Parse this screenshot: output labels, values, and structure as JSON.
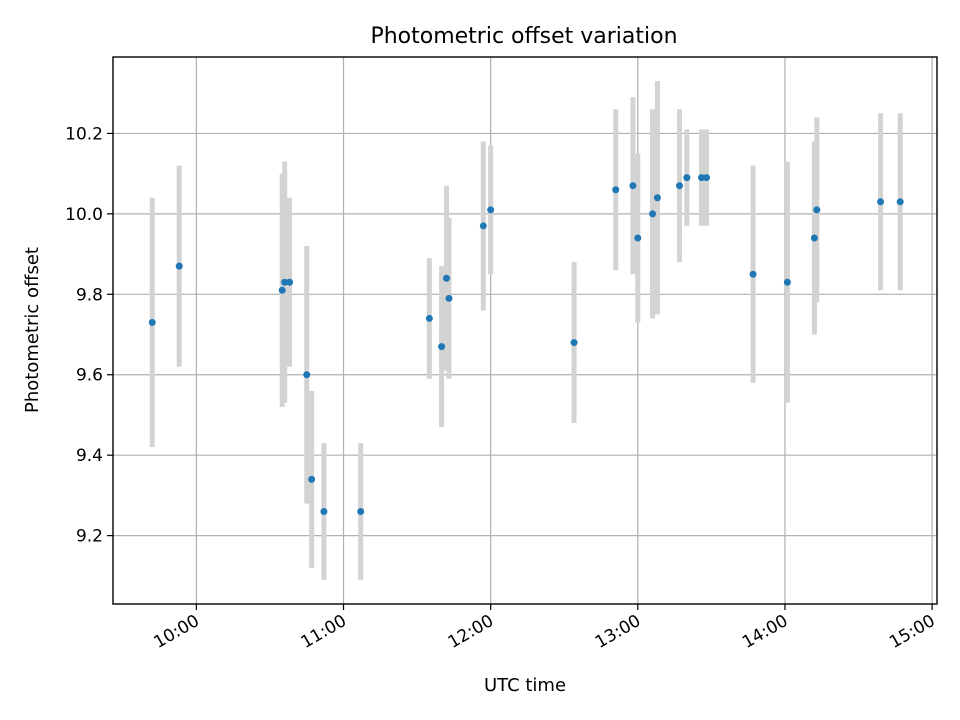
{
  "chart_data": {
    "type": "scatter",
    "title": "Photometric offset variation",
    "xlabel": "UTC time",
    "ylabel": "Photometric offset",
    "x_tick_labels": [
      "10:00",
      "11:00",
      "12:00",
      "13:00",
      "14:00",
      "15:00"
    ],
    "y_tick_labels": [
      "9.2",
      "9.4",
      "9.6",
      "9.8",
      "10.0",
      "10.2"
    ],
    "xlim": [
      "09:26",
      "15:02"
    ],
    "ylim": [
      9.03,
      10.39
    ],
    "grid": true,
    "colors": {
      "point": "#1f77b4",
      "error_bar": "#d3d3d3"
    },
    "points": [
      {
        "time": "09:42",
        "y": 9.73,
        "yerr": 0.31
      },
      {
        "time": "09:53",
        "y": 9.87,
        "yerr": 0.25
      },
      {
        "time": "10:35",
        "y": 9.81,
        "yerr": 0.29
      },
      {
        "time": "10:36",
        "y": 9.83,
        "yerr": 0.3
      },
      {
        "time": "10:38",
        "y": 9.83,
        "yerr": 0.21
      },
      {
        "time": "10:45",
        "y": 9.6,
        "yerr": 0.32
      },
      {
        "time": "10:47",
        "y": 9.34,
        "yerr": 0.22
      },
      {
        "time": "10:52",
        "y": 9.26,
        "yerr": 0.17
      },
      {
        "time": "11:07",
        "y": 9.26,
        "yerr": 0.17
      },
      {
        "time": "11:35",
        "y": 9.74,
        "yerr": 0.15
      },
      {
        "time": "11:40",
        "y": 9.67,
        "yerr": 0.2
      },
      {
        "time": "11:42",
        "y": 9.84,
        "yerr": 0.23
      },
      {
        "time": "11:43",
        "y": 9.79,
        "yerr": 0.2
      },
      {
        "time": "11:57",
        "y": 9.97,
        "yerr": 0.21
      },
      {
        "time": "12:00",
        "y": 10.01,
        "yerr": 0.16
      },
      {
        "time": "12:34",
        "y": 9.68,
        "yerr": 0.2
      },
      {
        "time": "12:51",
        "y": 10.06,
        "yerr": 0.2
      },
      {
        "time": "12:58",
        "y": 10.07,
        "yerr": 0.22
      },
      {
        "time": "13:00",
        "y": 9.94,
        "yerr": 0.21
      },
      {
        "time": "13:06",
        "y": 10.0,
        "yerr": 0.26
      },
      {
        "time": "13:08",
        "y": 10.04,
        "yerr": 0.29
      },
      {
        "time": "13:17",
        "y": 10.07,
        "yerr": 0.19
      },
      {
        "time": "13:20",
        "y": 10.09,
        "yerr": 0.12
      },
      {
        "time": "13:26",
        "y": 10.09,
        "yerr": 0.12
      },
      {
        "time": "13:28",
        "y": 10.09,
        "yerr": 0.12
      },
      {
        "time": "13:47",
        "y": 9.85,
        "yerr": 0.27
      },
      {
        "time": "14:01",
        "y": 9.83,
        "yerr": 0.3
      },
      {
        "time": "14:12",
        "y": 9.94,
        "yerr": 0.24
      },
      {
        "time": "14:13",
        "y": 10.01,
        "yerr": 0.23
      },
      {
        "time": "14:39",
        "y": 10.03,
        "yerr": 0.22
      },
      {
        "time": "14:47",
        "y": 10.03,
        "yerr": 0.22
      }
    ]
  }
}
